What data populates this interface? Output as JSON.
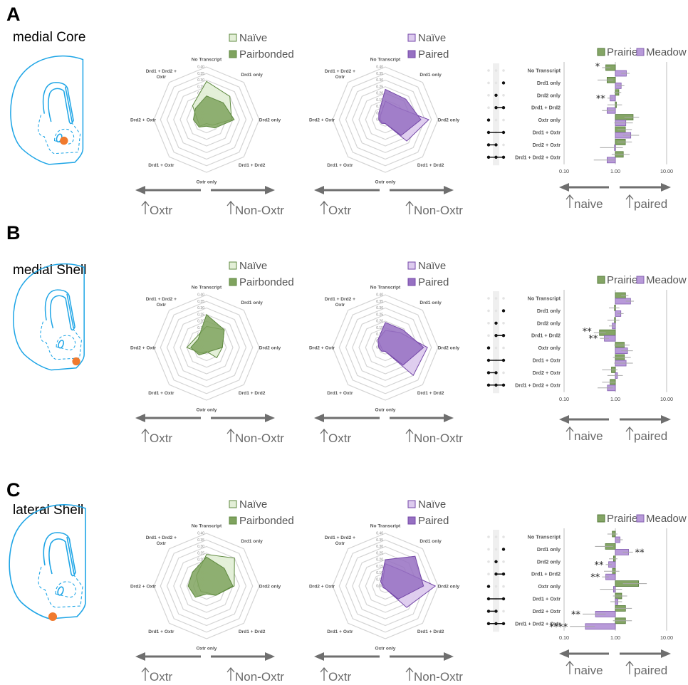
{
  "colors": {
    "prairie_light": "#e3efd7",
    "prairie_dark": "#7fa35e",
    "prairie_edge": "#5f8a40",
    "meadow_light": "#ddcbee",
    "meadow_dark": "#9670c2",
    "meadow_edge": "#7447a8",
    "bar_prairie": "#84a565",
    "bar_meadow": "#b89ad9",
    "brain": "#1ea5e6",
    "target": "#f07a2e"
  },
  "icons": {
    "direction": "arrow-icon",
    "upset": "dot-matrix-icon",
    "site": "brain-section-icon"
  },
  "directions": {
    "left": "Oxtr",
    "right": "Non-Oxtr",
    "bar_left": "naive",
    "bar_right": "paired"
  },
  "chart_data": {
    "categories": [
      "No Transcript",
      "Drd1 only",
      "Drd2 only",
      "Drd1 + Drd2",
      "Oxtr only",
      "Drd1 + Oxtr",
      "Drd2 + Oxtr",
      "Drd1 + Drd2 + Oxtr"
    ],
    "upset_membership": [
      [],
      [
        "Drd1"
      ],
      [
        "Drd2"
      ],
      [
        "Drd1",
        "Drd2"
      ],
      [
        "Oxtr"
      ],
      [
        "Drd1",
        "Oxtr"
      ],
      [
        "Drd2",
        "Oxtr"
      ],
      [
        "Drd1",
        "Drd2",
        "Oxtr"
      ]
    ],
    "radar_ticks": [
      "0.00",
      "0.05",
      "0.10",
      "0.15",
      "0.20",
      "0.25",
      "0.30",
      "0.35",
      "0.40"
    ],
    "radar_range": [
      0,
      0.4
    ],
    "bar_scale": "log",
    "bar_xlim": [
      0.1,
      10
    ],
    "bar_ticks": [
      "0.10",
      "1.00",
      "10.00"
    ],
    "bar_legend": [
      "Prairie",
      "Meadow"
    ],
    "panels": [
      {
        "letter": "A",
        "region": "medial Core",
        "radars": [
          {
            "type": "radar",
            "species": "prairie",
            "series": [
              {
                "name": "Naïve",
                "values": [
                  0.29,
                  0.25,
                  0.19,
                  0.06,
                  0.03,
                  0.07,
                  0.07,
                  0.15
                ]
              },
              {
                "name": "Pairbonded",
                "values": [
                  0.18,
                  0.18,
                  0.21,
                  0.09,
                  0.05,
                  0.08,
                  0.1,
                  0.12
                ]
              }
            ]
          },
          {
            "type": "radar",
            "species": "meadow",
            "series": [
              {
                "name": "Naïve",
                "values": [
                  0.14,
                  0.13,
                  0.33,
                  0.23,
                  0.03,
                  0.03,
                  0.04,
                  0.05
                ]
              },
              {
                "name": "Paired",
                "values": [
                  0.23,
                  0.22,
                  0.27,
                  0.17,
                  0.03,
                  0.04,
                  0.05,
                  0.07
                ]
              }
            ]
          }
        ],
        "bars": {
          "type": "bar",
          "orientation": "horizontal",
          "series": [
            {
              "name": "Prairie",
              "values": [
                0.65,
                0.69,
                1.17,
                1.02,
                2.22,
                1.57,
                1.57,
                1.43
              ],
              "errors": [
                [
                  0.55,
                  0.8
                ],
                [
                  0.45,
                  0.9
                ],
                [
                  0.95,
                  1.3
                ],
                [
                  0.7,
                  1.35
                ],
                [
                  1.5,
                  2.9
                ],
                [
                  1.1,
                  2.1
                ],
                [
                  1.1,
                  2.1
                ],
                [
                  0.85,
                  1.9
                ]
              ]
            },
            {
              "name": "Meadow",
              "values": [
                1.64,
                1.3,
                0.79,
                0.69,
                1.6,
                2.0,
                0.96,
                0.69
              ],
              "errors": [
                [
                  1.3,
                  1.9
                ],
                [
                  1.05,
                  1.5
                ],
                [
                  0.7,
                  0.9
                ],
                [
                  0.55,
                  0.95
                ],
                [
                  0.95,
                  2.2
                ],
                [
                  1.4,
                  2.9
                ],
                [
                  0.5,
                  1.4
                ],
                [
                  0.38,
                  0.95
                ]
              ]
            }
          ],
          "annotations": [
            {
              "category": 0,
              "series": 0,
              "text": "*",
              "side": "left"
            },
            {
              "category": 2,
              "series": 1,
              "text": "**",
              "side": "left"
            }
          ]
        }
      },
      {
        "letter": "B",
        "region": "medial Shell",
        "radars": [
          {
            "type": "radar",
            "species": "prairie",
            "series": [
              {
                "name": "Naïve",
                "values": [
                  0.16,
                  0.19,
                  0.12,
                  0.11,
                  0.03,
                  0.06,
                  0.15,
                  0.11
                ]
              },
              {
                "name": "Pairbonded",
                "values": [
                  0.25,
                  0.19,
                  0.12,
                  0.04,
                  0.04,
                  0.08,
                  0.12,
                  0.09
                ]
              }
            ]
          },
          {
            "type": "radar",
            "species": "meadow",
            "series": [
              {
                "name": "Naïve",
                "values": [
                  0.13,
                  0.16,
                  0.32,
                  0.3,
                  0.03,
                  0.03,
                  0.03,
                  0.08
                ]
              },
              {
                "name": "Paired",
                "values": [
                  0.19,
                  0.19,
                  0.29,
                  0.19,
                  0.03,
                  0.04,
                  0.05,
                  0.08
                ]
              }
            ]
          }
        ],
        "bars": {
          "type": "bar",
          "orientation": "horizontal",
          "series": [
            {
              "name": "Prairie",
              "values": [
                1.58,
                0.96,
                0.96,
                0.49,
                1.49,
                1.5,
                0.84,
                0.79
              ],
              "errors": [
                [
                  1.3,
                  1.8
                ],
                [
                  0.75,
                  1.2
                ],
                [
                  0.7,
                  1.2
                ],
                [
                  0.38,
                  0.65
                ],
                [
                  0.95,
                  1.9
                ],
                [
                  0.9,
                  2.0
                ],
                [
                  0.55,
                  1.1
                ],
                [
                  0.55,
                  1.0
                ]
              ]
            },
            {
              "name": "Meadow",
              "values": [
                1.98,
                1.28,
                0.87,
                0.61,
                1.73,
                1.62,
                1.1,
                0.7
              ],
              "errors": [
                [
                  1.6,
                  2.3
                ],
                [
                  1.1,
                  1.45
                ],
                [
                  0.75,
                  1.0
                ],
                [
                  0.5,
                  0.75
                ],
                [
                  1.3,
                  2.2
                ],
                [
                  0.95,
                  2.2
                ],
                [
                  0.7,
                  1.4
                ],
                [
                  0.45,
                  0.9
                ]
              ]
            }
          ],
          "annotations": [
            {
              "category": 3,
              "series": 0,
              "text": "**",
              "side": "left"
            },
            {
              "category": 3,
              "series": 1,
              "text": "**",
              "side": "left"
            }
          ]
        }
      },
      {
        "letter": "C",
        "region": "lateral Shell",
        "radars": [
          {
            "type": "radar",
            "species": "prairie",
            "series": [
              {
                "name": "Naïve",
                "values": [
                  0.24,
                  0.3,
                  0.21,
                  0.1,
                  0.05,
                  0.06,
                  0.06,
                  0.11
                ]
              },
              {
                "name": "Pairbonded",
                "values": [
                  0.22,
                  0.19,
                  0.2,
                  0.1,
                  0.06,
                  0.12,
                  0.14,
                  0.15
                ]
              }
            ]
          },
          {
            "type": "radar",
            "species": "meadow",
            "series": [
              {
                "name": "Naïve",
                "values": [
                  0.17,
                  0.17,
                  0.38,
                  0.23,
                  0.02,
                  0.01,
                  0.01,
                  0.03
                ]
              },
              {
                "name": "Paired",
                "values": [
                  0.2,
                  0.32,
                  0.29,
                  0.14,
                  0.02,
                  0.02,
                  0.02,
                  0.05
                ]
              }
            ]
          }
        ],
        "bars": {
          "type": "bar",
          "orientation": "horizontal",
          "series": [
            {
              "name": "Prairie",
              "values": [
                0.87,
                0.64,
                0.92,
                0.88,
                2.84,
                1.33,
                1.58,
                1.58
              ],
              "errors": [
                [
                  0.7,
                  1.1
                ],
                [
                  0.4,
                  0.9
                ],
                [
                  0.75,
                  1.1
                ],
                [
                  0.6,
                  1.2
                ],
                [
                  1.4,
                  4.1
                ],
                [
                  0.9,
                  1.7
                ],
                [
                  1.0,
                  2.1
                ],
                [
                  0.9,
                  2.1
                ]
              ]
            },
            {
              "name": "Meadow",
              "values": [
                1.23,
                1.81,
                0.74,
                0.65,
                0.92,
                1.12,
                0.41,
                0.26
              ],
              "errors": [
                [
                  1.05,
                  1.4
                ],
                [
                  1.4,
                  2.2
                ],
                [
                  0.65,
                  0.85
                ],
                [
                  0.55,
                  0.75
                ],
                [
                  0.5,
                  1.35
                ],
                [
                  0.8,
                  1.35
                ],
                [
                  0.23,
                  0.65
                ],
                [
                  0.13,
                  0.4
                ]
              ]
            }
          ],
          "annotations": [
            {
              "category": 1,
              "series": 1,
              "text": "**",
              "side": "right"
            },
            {
              "category": 2,
              "series": 1,
              "text": "**",
              "side": "left"
            },
            {
              "category": 3,
              "series": 1,
              "text": "**",
              "side": "left"
            },
            {
              "category": 6,
              "series": 1,
              "text": "**",
              "side": "left"
            },
            {
              "category": 7,
              "series": 1,
              "text": "****",
              "side": "left"
            }
          ]
        }
      }
    ]
  }
}
